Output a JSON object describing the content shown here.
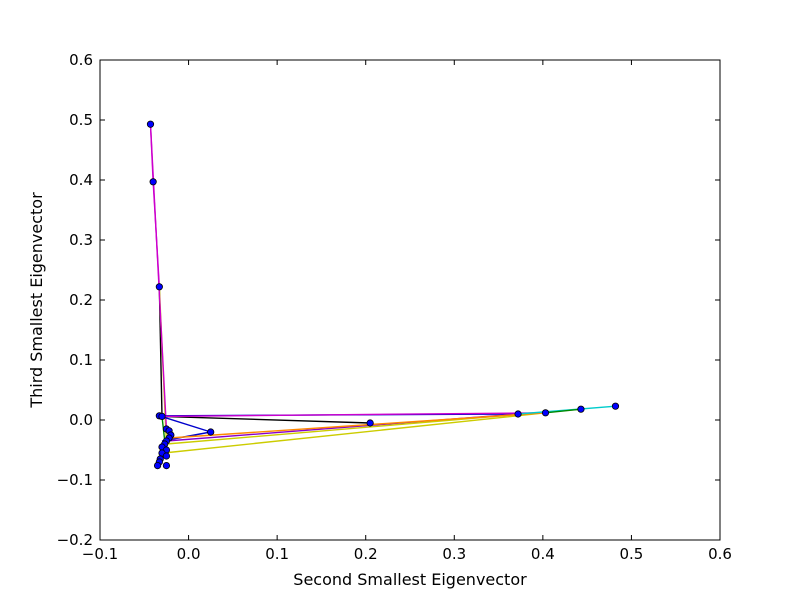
{
  "chart_data": {
    "type": "scatter",
    "xlabel": "Second Smallest Eigenvector",
    "ylabel": "Third Smallest Eigenvector",
    "xlim": [
      -0.1,
      0.6
    ],
    "ylim": [
      -0.2,
      0.6
    ],
    "xticks": [
      "−0.1",
      "0.0",
      "0.1",
      "0.2",
      "0.3",
      "0.4",
      "0.5",
      "0.6"
    ],
    "yticks": [
      "−0.2",
      "−0.1",
      "0.0",
      "0.1",
      "0.2",
      "0.3",
      "0.4",
      "0.5",
      "0.6"
    ],
    "grid": false,
    "marker_color": "#0000ff",
    "points": [
      [
        -0.043,
        0.493
      ],
      [
        -0.04,
        0.397
      ],
      [
        -0.033,
        0.222
      ],
      [
        -0.033,
        0.007
      ],
      [
        -0.03,
        0.006
      ],
      [
        -0.025,
        -0.015
      ],
      [
        -0.022,
        -0.018
      ],
      [
        -0.02,
        -0.025
      ],
      [
        -0.022,
        -0.03
      ],
      [
        -0.025,
        -0.035
      ],
      [
        -0.027,
        -0.04
      ],
      [
        -0.03,
        -0.045
      ],
      [
        -0.025,
        -0.05
      ],
      [
        -0.03,
        -0.055
      ],
      [
        -0.025,
        -0.06
      ],
      [
        -0.032,
        -0.065
      ],
      [
        -0.033,
        -0.07
      ],
      [
        -0.035,
        -0.076
      ],
      [
        -0.025,
        -0.076
      ],
      [
        0.025,
        -0.02
      ],
      [
        0.205,
        -0.005
      ],
      [
        0.372,
        0.01
      ],
      [
        0.403,
        0.012
      ],
      [
        0.443,
        0.018
      ],
      [
        0.482,
        0.023
      ]
    ],
    "edges": [
      {
        "color": "#cc00cc",
        "from": [
          -0.043,
          0.493
        ],
        "to": [
          -0.04,
          0.397
        ]
      },
      {
        "color": "#cc00cc",
        "from": [
          -0.04,
          0.397
        ],
        "to": [
          -0.033,
          0.222
        ]
      },
      {
        "color": "#000000",
        "from": [
          -0.033,
          0.222
        ],
        "to": [
          -0.03,
          0.006
        ]
      },
      {
        "color": "#008800",
        "from": [
          -0.03,
          0.006
        ],
        "to": [
          -0.025,
          -0.06
        ]
      },
      {
        "color": "#cccc00",
        "from": [
          -0.033,
          0.222
        ],
        "to": [
          -0.025,
          -0.04
        ]
      },
      {
        "color": "#cc00cc",
        "from": [
          -0.043,
          0.493
        ],
        "to": [
          -0.025,
          -0.015
        ]
      },
      {
        "color": "#0000cc",
        "from": [
          -0.033,
          0.007
        ],
        "to": [
          0.025,
          -0.02
        ]
      },
      {
        "color": "#0000cc",
        "from": [
          0.025,
          -0.02
        ],
        "to": [
          -0.03,
          -0.035
        ]
      },
      {
        "color": "#000000",
        "from": [
          -0.03,
          0.006
        ],
        "to": [
          0.205,
          -0.005
        ]
      },
      {
        "color": "#0000cc",
        "from": [
          -0.033,
          0.007
        ],
        "to": [
          0.372,
          0.01
        ]
      },
      {
        "color": "#cc00cc",
        "from": [
          -0.03,
          0.006
        ],
        "to": [
          0.403,
          0.012
        ]
      },
      {
        "color": "#8800cc",
        "from": [
          -0.025,
          -0.035
        ],
        "to": [
          0.372,
          0.01
        ]
      },
      {
        "color": "#cccc00",
        "from": [
          -0.028,
          -0.055
        ],
        "to": [
          0.403,
          0.012
        ]
      },
      {
        "color": "#cccc00",
        "from": [
          -0.025,
          -0.04
        ],
        "to": [
          0.443,
          0.018
        ]
      },
      {
        "color": "#ff8800",
        "from": [
          -0.022,
          -0.03
        ],
        "to": [
          0.403,
          0.012
        ]
      },
      {
        "color": "#00cccc",
        "from": [
          0.372,
          0.01
        ],
        "to": [
          0.482,
          0.023
        ]
      },
      {
        "color": "#008800",
        "from": [
          0.403,
          0.012
        ],
        "to": [
          0.443,
          0.018
        ]
      },
      {
        "color": "#cccc00",
        "from": [
          -0.035,
          -0.076
        ],
        "to": [
          -0.02,
          -0.015
        ]
      },
      {
        "color": "#000000",
        "from": [
          -0.033,
          -0.07
        ],
        "to": [
          -0.025,
          -0.045
        ]
      },
      {
        "color": "#ff8800",
        "from": [
          -0.03,
          -0.065
        ],
        "to": [
          -0.022,
          -0.03
        ]
      }
    ]
  }
}
